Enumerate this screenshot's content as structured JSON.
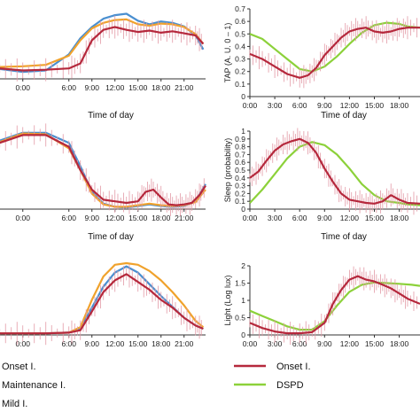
{
  "colors": {
    "onset": "#b5283c",
    "maintenance": "#4a8fd0",
    "mild": "#f0a22c",
    "dspd": "#8cd13a",
    "axis": "#333333"
  },
  "legend": {
    "left": [
      {
        "key": "onset",
        "label": "Onset I."
      },
      {
        "key": "maintenance",
        "label": "Maintenance I."
      },
      {
        "key": "mild",
        "label": "Mild I."
      }
    ],
    "right": [
      {
        "key": "onset",
        "label": "Onset I."
      },
      {
        "key": "dspd",
        "label": "DSPD"
      }
    ]
  },
  "chart_data": [
    {
      "id": "left-top",
      "type": "line",
      "xlabel": "Time of day",
      "ylabel": "",
      "x_ticks": [
        "0:00",
        "6:00",
        "9:00",
        "12:00",
        "15:00",
        "18:00",
        "21:00"
      ],
      "x_tick_values": [
        0,
        6,
        9,
        12,
        15,
        18,
        21
      ],
      "x_range": [
        -3.2,
        23.8
      ],
      "ylim": [
        0,
        1
      ],
      "y_ticks": [],
      "series": [
        {
          "key": "onset",
          "error_bars": true,
          "x": [
            -3,
            0,
            3,
            6,
            7.5,
            9,
            10.5,
            12,
            13.5,
            15,
            16.5,
            18,
            19.5,
            21,
            22.5,
            23.5
          ],
          "values": [
            0.15,
            0.12,
            0.13,
            0.15,
            0.22,
            0.55,
            0.7,
            0.74,
            0.7,
            0.67,
            0.69,
            0.66,
            0.68,
            0.65,
            0.62,
            0.5
          ]
        },
        {
          "key": "maintenance",
          "x": [
            -3,
            0,
            3,
            6,
            7.5,
            9,
            10.5,
            12,
            13.5,
            15,
            16.5,
            18,
            19.5,
            21,
            22.5,
            23.5
          ],
          "values": [
            0.14,
            0.1,
            0.12,
            0.35,
            0.58,
            0.74,
            0.86,
            0.91,
            0.93,
            0.83,
            0.78,
            0.82,
            0.8,
            0.75,
            0.62,
            0.42
          ]
        },
        {
          "key": "mild",
          "x": [
            -3,
            0,
            3,
            6,
            7.5,
            9,
            10.5,
            12,
            13.5,
            15,
            16.5,
            18,
            19.5,
            21,
            22.5,
            23.5
          ],
          "values": [
            0.17,
            0.18,
            0.2,
            0.33,
            0.55,
            0.72,
            0.8,
            0.84,
            0.85,
            0.78,
            0.76,
            0.79,
            0.78,
            0.74,
            0.64,
            0.5
          ]
        }
      ]
    },
    {
      "id": "right-top",
      "type": "line",
      "xlabel": "Time of day",
      "ylabel": "TAP (A. U. 0 – 1)",
      "x_ticks": [
        "0:00",
        "3:00",
        "6:00",
        "9:00",
        "12:00",
        "15:00",
        "18:00"
      ],
      "x_tick_values": [
        0,
        3,
        6,
        9,
        12,
        15,
        18
      ],
      "x_range": [
        0,
        20.5
      ],
      "ylim": [
        0,
        0.7
      ],
      "y_ticks": [
        "0",
        "0.1",
        "0.2",
        "0.3",
        "0.4",
        "0.5",
        "0.6",
        "0.7"
      ],
      "y_tick_values": [
        0,
        0.1,
        0.2,
        0.3,
        0.4,
        0.5,
        0.6,
        0.7
      ],
      "series": [
        {
          "key": "onset",
          "error_bars": true,
          "x": [
            0,
            1.5,
            3,
            4.5,
            6,
            7,
            8,
            9,
            10,
            11,
            12,
            13,
            14,
            15,
            16,
            17,
            18,
            19,
            20.5
          ],
          "values": [
            0.34,
            0.3,
            0.24,
            0.18,
            0.15,
            0.17,
            0.23,
            0.33,
            0.4,
            0.47,
            0.52,
            0.54,
            0.55,
            0.52,
            0.51,
            0.52,
            0.54,
            0.55,
            0.55
          ]
        },
        {
          "key": "dspd",
          "x": [
            0,
            1.5,
            3,
            4.5,
            6,
            7.5,
            9,
            10.5,
            12,
            13.5,
            15,
            16.5,
            18,
            19,
            20.5
          ],
          "values": [
            0.5,
            0.46,
            0.38,
            0.3,
            0.22,
            0.2,
            0.24,
            0.32,
            0.42,
            0.51,
            0.57,
            0.59,
            0.58,
            0.56,
            0.55
          ]
        }
      ]
    },
    {
      "id": "left-middle",
      "type": "line",
      "xlabel": "Time of day",
      "ylabel": "",
      "x_ticks": [
        "0:00",
        "6:00",
        "9:00",
        "12:00",
        "15:00",
        "18:00",
        "21:00"
      ],
      "x_tick_values": [
        0,
        6,
        9,
        12,
        15,
        18,
        21
      ],
      "x_range": [
        -3.2,
        23.8
      ],
      "ylim": [
        0,
        1
      ],
      "y_ticks": [],
      "series": [
        {
          "key": "onset",
          "error_bars": true,
          "x": [
            -3,
            0,
            3,
            6,
            7.5,
            9,
            10.5,
            12,
            13.5,
            15,
            16,
            17,
            18,
            19,
            20,
            21,
            22,
            23,
            23.8
          ],
          "values": [
            0.85,
            0.95,
            0.95,
            0.8,
            0.5,
            0.25,
            0.12,
            0.1,
            0.08,
            0.1,
            0.22,
            0.25,
            0.15,
            0.06,
            0.05,
            0.06,
            0.08,
            0.18,
            0.3
          ]
        },
        {
          "key": "maintenance",
          "x": [
            -3,
            0,
            3,
            6,
            7.5,
            9,
            10.5,
            12,
            13.5,
            15,
            16.5,
            18,
            19.5,
            21,
            22.5,
            23.8
          ],
          "values": [
            0.88,
            0.98,
            0.98,
            0.85,
            0.55,
            0.22,
            0.07,
            0.03,
            0.02,
            0.04,
            0.06,
            0.04,
            0.03,
            0.04,
            0.1,
            0.32
          ]
        },
        {
          "key": "mild",
          "x": [
            -3,
            0,
            3,
            6,
            7.5,
            9,
            10.5,
            12,
            13.5,
            15,
            16.5,
            18,
            19.5,
            21,
            22.5,
            23.8
          ],
          "values": [
            0.86,
            0.97,
            0.96,
            0.78,
            0.5,
            0.2,
            0.06,
            0.03,
            0.03,
            0.05,
            0.07,
            0.05,
            0.04,
            0.05,
            0.09,
            0.25
          ]
        }
      ]
    },
    {
      "id": "right-middle",
      "type": "line",
      "xlabel": "Time of day",
      "ylabel": "Sleep (probability)",
      "x_ticks": [
        "0:00",
        "3:00",
        "6:00",
        "9:00",
        "12:00",
        "15:00",
        "18:00"
      ],
      "x_tick_values": [
        0,
        3,
        6,
        9,
        12,
        15,
        18
      ],
      "x_range": [
        0,
        20.5
      ],
      "ylim": [
        0,
        1
      ],
      "y_ticks": [
        "0",
        "0.1",
        "0.2",
        "0.3",
        "0.4",
        "0.5",
        "0.6",
        "0.7",
        "0.8",
        "0.9",
        "1"
      ],
      "y_tick_values": [
        0,
        0.1,
        0.2,
        0.3,
        0.4,
        0.5,
        0.6,
        0.7,
        0.8,
        0.9,
        1
      ],
      "series": [
        {
          "key": "onset",
          "error_bars": true,
          "x": [
            0,
            1,
            2,
            3,
            4,
            5,
            6,
            7,
            8,
            9,
            10,
            11,
            12,
            13,
            14,
            15,
            16,
            17,
            18,
            19,
            20.5
          ],
          "values": [
            0.4,
            0.48,
            0.62,
            0.75,
            0.83,
            0.87,
            0.9,
            0.85,
            0.72,
            0.52,
            0.35,
            0.2,
            0.12,
            0.1,
            0.08,
            0.07,
            0.1,
            0.18,
            0.12,
            0.08,
            0.07
          ]
        },
        {
          "key": "dspd",
          "x": [
            0,
            1.5,
            3,
            4.5,
            6,
            7.5,
            9,
            10.5,
            12,
            13.5,
            15,
            16.5,
            18,
            19,
            20.5
          ],
          "values": [
            0.08,
            0.25,
            0.45,
            0.65,
            0.8,
            0.86,
            0.82,
            0.7,
            0.52,
            0.32,
            0.18,
            0.1,
            0.08,
            0.06,
            0.05
          ]
        }
      ]
    },
    {
      "id": "left-bottom",
      "type": "line",
      "xlabel": "",
      "ylabel": "",
      "x_ticks": [
        "0:00",
        "6:00",
        "9:00",
        "12:00",
        "15:00",
        "18:00",
        "21:00"
      ],
      "x_tick_values": [
        0,
        6,
        9,
        12,
        15,
        18,
        21
      ],
      "x_range": [
        -3.2,
        23.8
      ],
      "ylim": [
        0,
        1
      ],
      "y_ticks": [],
      "series": [
        {
          "key": "onset",
          "error_bars": true,
          "x": [
            -3,
            0,
            3,
            6,
            7.5,
            9,
            10.5,
            12,
            13.5,
            15,
            16.5,
            18,
            19.5,
            21,
            22.5,
            23.5
          ],
          "values": [
            0.02,
            0.02,
            0.02,
            0.03,
            0.06,
            0.3,
            0.55,
            0.7,
            0.78,
            0.68,
            0.58,
            0.45,
            0.35,
            0.22,
            0.12,
            0.08
          ]
        },
        {
          "key": "maintenance",
          "x": [
            -3,
            0,
            3,
            6,
            7.5,
            9,
            10.5,
            12,
            13.5,
            15,
            16.5,
            18,
            19.5,
            21,
            22.5,
            23.5
          ],
          "values": [
            0.02,
            0.02,
            0.02,
            0.03,
            0.08,
            0.35,
            0.62,
            0.8,
            0.88,
            0.8,
            0.65,
            0.5,
            0.36,
            0.22,
            0.12,
            0.08
          ]
        },
        {
          "key": "mild",
          "x": [
            -3,
            0,
            3,
            6,
            7.5,
            9,
            10.5,
            12,
            13.5,
            15,
            16.5,
            18,
            19.5,
            21,
            22.5,
            23.5
          ],
          "values": [
            0.02,
            0.02,
            0.02,
            0.03,
            0.1,
            0.45,
            0.75,
            0.9,
            0.92,
            0.9,
            0.82,
            0.7,
            0.55,
            0.38,
            0.18,
            0.1
          ]
        }
      ]
    },
    {
      "id": "right-bottom",
      "type": "line",
      "xlabel": "",
      "ylabel": "Light (Log lux)",
      "x_ticks": [
        "0:00",
        "3:00",
        "6:00",
        "9:00",
        "12:00",
        "15:00",
        "18:00"
      ],
      "x_tick_values": [
        0,
        3,
        6,
        9,
        12,
        15,
        18
      ],
      "x_range": [
        0,
        20.5
      ],
      "ylim": [
        0,
        2
      ],
      "y_ticks": [
        "0",
        "0.5",
        "1",
        "1.5",
        "2"
      ],
      "y_tick_values": [
        0,
        0.5,
        1,
        1.5,
        2
      ],
      "series": [
        {
          "key": "onset",
          "error_bars": true,
          "x": [
            0,
            1.5,
            3,
            4.5,
            6,
            7.5,
            9,
            10,
            11,
            12,
            13,
            14,
            15,
            16,
            17,
            18,
            19,
            20.5
          ],
          "values": [
            0.35,
            0.2,
            0.1,
            0.05,
            0.05,
            0.08,
            0.35,
            0.9,
            1.3,
            1.6,
            1.7,
            1.6,
            1.55,
            1.45,
            1.35,
            1.2,
            1.05,
            0.9
          ]
        },
        {
          "key": "dspd",
          "x": [
            0,
            1.5,
            3,
            4.5,
            6,
            7.5,
            9,
            10.5,
            12,
            13.5,
            15,
            16.5,
            18,
            19.5,
            20.5
          ],
          "values": [
            0.7,
            0.55,
            0.4,
            0.25,
            0.15,
            0.15,
            0.4,
            0.85,
            1.25,
            1.45,
            1.52,
            1.5,
            1.48,
            1.45,
            1.42
          ]
        }
      ]
    }
  ]
}
